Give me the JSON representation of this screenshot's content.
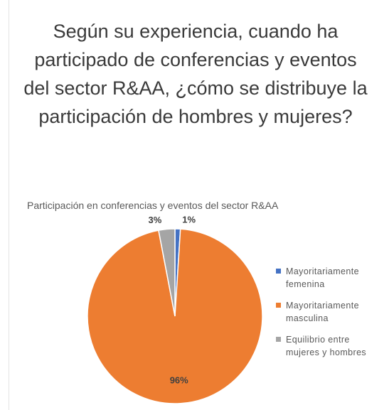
{
  "heading": "Según su experiencia, cuando ha participado de conferencias y eventos del sector R&AA, ¿cómo se distribuye la participación de hombres y mujeres?",
  "chart_data": {
    "type": "pie",
    "title": "Participación en conferencias y eventos del sector R&AA",
    "categories": [
      "Mayoritariamente femenina",
      "Mayoritariamente masculina",
      "Equilibrio entre mujeres y hombres"
    ],
    "values": [
      1,
      96,
      3
    ],
    "value_labels": [
      "1%",
      "96%",
      "3%"
    ],
    "colors": [
      "#4472c4",
      "#ed7d31",
      "#a5a5a5"
    ],
    "legend": "right"
  }
}
